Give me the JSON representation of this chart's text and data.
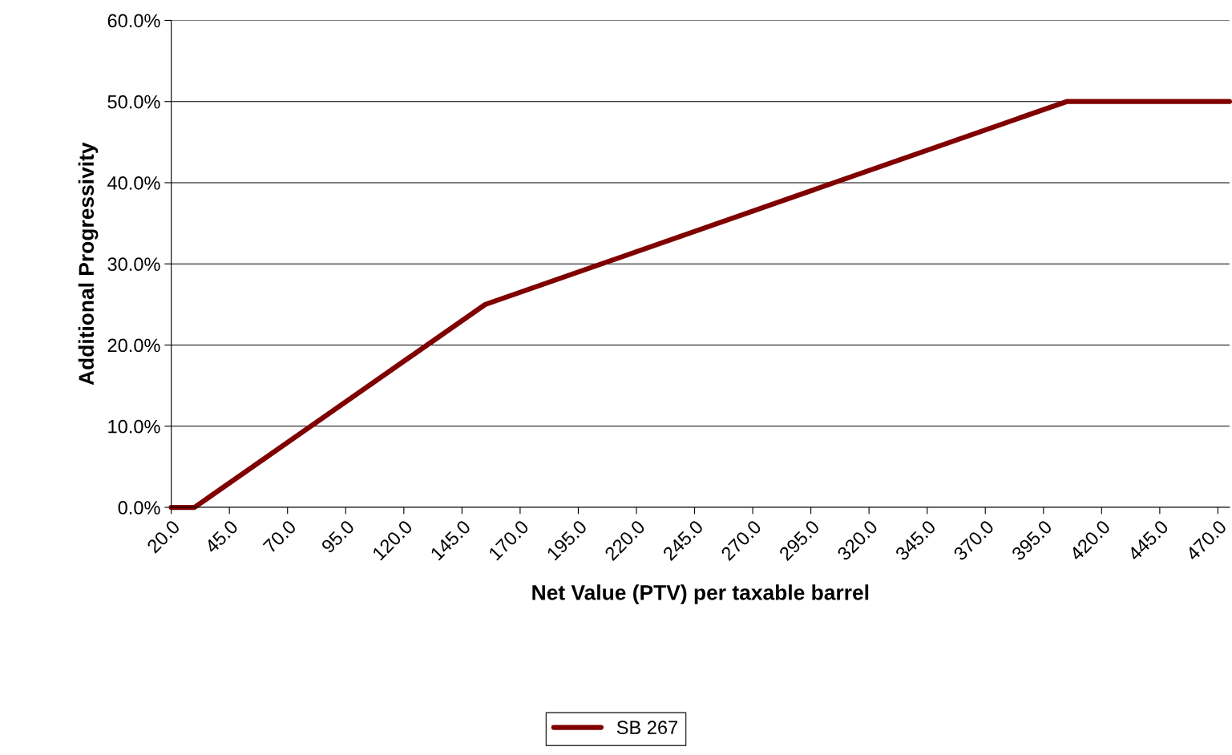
{
  "chart_data": {
    "type": "line",
    "xlabel": "Net Value (PTV) per taxable barrel",
    "ylabel": "Additional Progressivity",
    "x": [
      20,
      30,
      155,
      405,
      475
    ],
    "series": [
      {
        "name": "SB 267",
        "color": "#800000",
        "values": [
          0,
          0,
          25,
          50,
          50
        ]
      }
    ],
    "xlim": [
      20,
      475
    ],
    "xticks": [
      {
        "value": 20,
        "label": "20.0"
      },
      {
        "value": 45,
        "label": "45.0"
      },
      {
        "value": 70,
        "label": "70.0"
      },
      {
        "value": 95,
        "label": "95.0"
      },
      {
        "value": 120,
        "label": "120.0"
      },
      {
        "value": 145,
        "label": "145.0"
      },
      {
        "value": 170,
        "label": "170.0"
      },
      {
        "value": 195,
        "label": "195.0"
      },
      {
        "value": 220,
        "label": "220.0"
      },
      {
        "value": 245,
        "label": "245.0"
      },
      {
        "value": 270,
        "label": "270.0"
      },
      {
        "value": 295,
        "label": "295.0"
      },
      {
        "value": 320,
        "label": "320.0"
      },
      {
        "value": 345,
        "label": "345.0"
      },
      {
        "value": 370,
        "label": "370.0"
      },
      {
        "value": 395,
        "label": "395.0"
      },
      {
        "value": 420,
        "label": "420.0"
      },
      {
        "value": 445,
        "label": "445.0"
      },
      {
        "value": 470,
        "label": "470.0"
      }
    ],
    "ylim": [
      0,
      60
    ],
    "yticks": [
      {
        "value": 0,
        "label": "0.0%"
      },
      {
        "value": 10,
        "label": "10.0%"
      },
      {
        "value": 20,
        "label": "20.0%"
      },
      {
        "value": 30,
        "label": "30.0%"
      },
      {
        "value": 40,
        "label": "40.0%"
      },
      {
        "value": 50,
        "label": "50.0%"
      },
      {
        "value": 60,
        "label": "60.0%"
      }
    ],
    "grid": "y",
    "legend": "bottom",
    "marker": "none",
    "line_style": "solid"
  }
}
